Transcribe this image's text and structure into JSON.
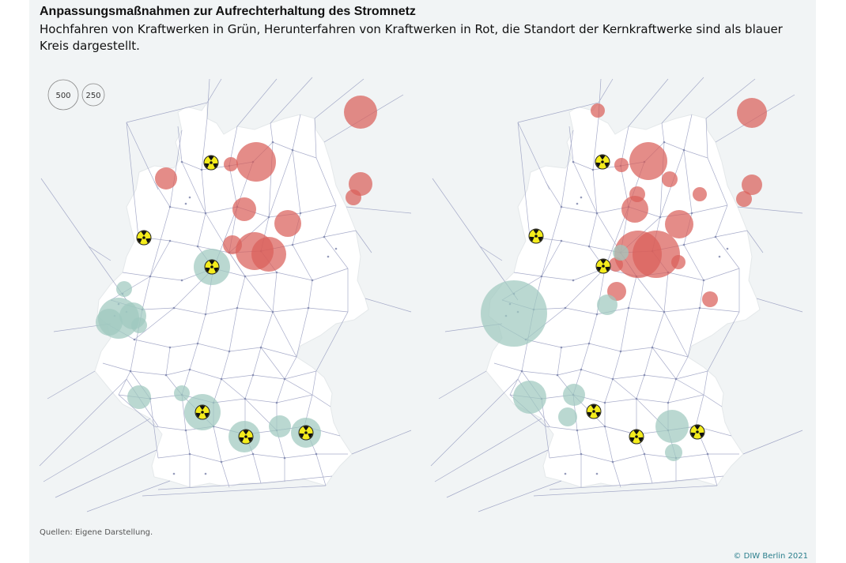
{
  "title": "Anpassungsmaßnahmen zur Aufrechterhaltung des Stromnetz",
  "subtitle": "Hochfahren von Kraftwerken in Grün, Herunterfahren von Kraftwerken in Rot, die Standort der Kernkraftwerke sind als blauer Kreis dargestellt.",
  "legend": {
    "large_label": "500",
    "small_label": "250"
  },
  "source": "Quellen: Eigene Darstellung.",
  "copyright": "© DIW Berlin 2021",
  "colors": {
    "up": "#9fc9bf",
    "down": "#d9605a",
    "nuclear_fill": "#f4ec1c",
    "grid": "#7d84ad",
    "land": "#ffffff",
    "background": "#f1f4f5"
  },
  "icons": {
    "nuclear": "radiation-icon"
  }
}
